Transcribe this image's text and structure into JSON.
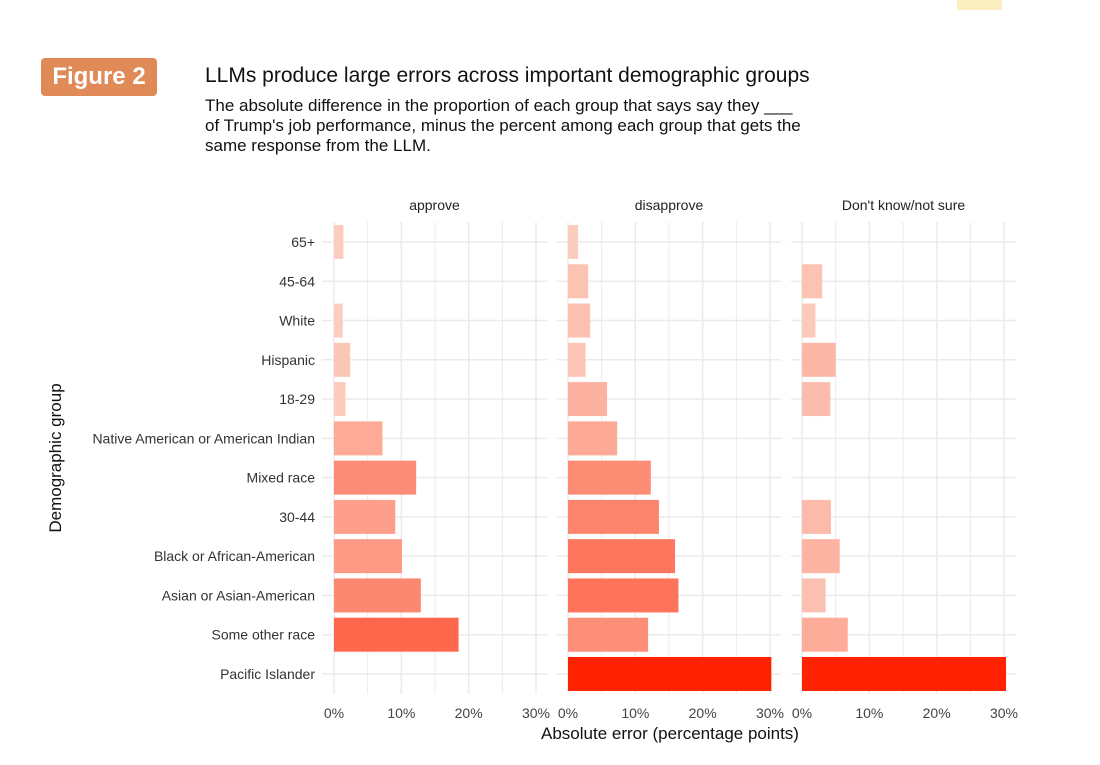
{
  "figure_tag": "Figure 2",
  "colors": {
    "tag": "#e08a58",
    "low": "#fcd5c7",
    "high": "#ff2200",
    "grid": "#ebebeb"
  },
  "chart_data": {
    "type": "bar",
    "orientation": "horizontal",
    "title": "LLMs produce large errors across important demographic groups",
    "subtitle": "The absolute difference in the proportion of each group that says say they ___ of Trump's job performance, minus the percent among each group that gets the same response from the LLM.",
    "xlabel": "Absolute error (percentage points)",
    "ylabel": "Demographic group",
    "xlim": [
      0,
      30
    ],
    "xticks": [
      "0%",
      "10%",
      "20%",
      "30%"
    ],
    "grid": true,
    "categories": [
      "65+",
      "45-64",
      "White",
      "Hispanic",
      "18-29",
      "Native American or American Indian",
      "Mixed race",
      "30-44",
      "Black or African-American",
      "Asian or Asian-American",
      "Some other race",
      "Pacific Islander"
    ],
    "series": [
      {
        "name": "approve",
        "values": [
          1.4,
          null,
          1.3,
          2.4,
          1.7,
          7.2,
          12.2,
          9.1,
          10.1,
          12.9,
          18.5,
          null
        ]
      },
      {
        "name": "disapprove",
        "values": [
          1.5,
          3.0,
          3.3,
          2.6,
          5.8,
          7.3,
          12.3,
          13.5,
          15.9,
          16.4,
          11.9,
          30.2
        ]
      },
      {
        "name": "Don't know/not sure",
        "values": [
          null,
          3.0,
          2.0,
          5.0,
          4.2,
          null,
          null,
          4.3,
          5.6,
          3.5,
          6.8,
          30.3
        ]
      }
    ]
  }
}
